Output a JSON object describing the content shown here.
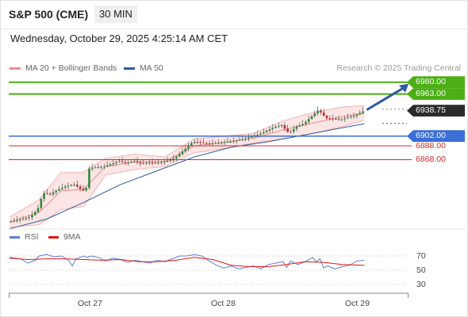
{
  "header": {
    "instrument": "S&P 500 (CME)",
    "timeframe": "30 MIN",
    "datetime": "Wednesday, October 29, 2025 4:25:14 AM CET"
  },
  "legend": {
    "ma20_label": "MA 20 + Bollinger Bands",
    "ma20_color": "#f08c8c",
    "ma50_label": "MA 50",
    "ma50_color": "#2c5aa0",
    "credit": "Research © 2025 Trading Central"
  },
  "rsi_legend": {
    "rsi_label": "RSI",
    "rsi_color": "#5b7fd6",
    "ma_label": "9MA",
    "ma_color": "#e01515"
  },
  "chart_data": {
    "type": "candlestick",
    "x_tick_labels": [
      "Oct 27",
      "Oct 28",
      "Oct 29"
    ],
    "price_range": [
      6770,
      6990
    ],
    "levels": [
      {
        "label": "6980.00",
        "value": 6980,
        "kind": "resistance",
        "color": "#4caf14"
      },
      {
        "label": "6963.00",
        "value": 6963,
        "kind": "resistance",
        "color": "#4caf14"
      },
      {
        "label": "6938.75",
        "value": 6938.75,
        "kind": "last_price",
        "color": "#2b2b2b"
      },
      {
        "label": "6902.00",
        "value": 6902,
        "kind": "pivot",
        "color": "#3a6fd8"
      },
      {
        "label": "6888.00",
        "value": 6888,
        "kind": "support",
        "color": "#d42a2a"
      },
      {
        "label": "6868.00",
        "value": 6868,
        "kind": "support",
        "color": "#d42a2a"
      }
    ],
    "target_arrow": {
      "from": 6940,
      "to": 6980,
      "color": "#2c5aa0"
    },
    "price_path": [
      [
        0,
        6778
      ],
      [
        0.02,
        6780
      ],
      [
        0.04,
        6782
      ],
      [
        0.06,
        6785
      ],
      [
        0.08,
        6796
      ],
      [
        0.09,
        6812
      ],
      [
        0.1,
        6822
      ],
      [
        0.11,
        6816
      ],
      [
        0.12,
        6820
      ],
      [
        0.14,
        6826
      ],
      [
        0.16,
        6830
      ],
      [
        0.18,
        6832
      ],
      [
        0.19,
        6828
      ],
      [
        0.2,
        6824
      ],
      [
        0.21,
        6822
      ],
      [
        0.22,
        6856
      ],
      [
        0.24,
        6857
      ],
      [
        0.26,
        6858
      ],
      [
        0.28,
        6862
      ],
      [
        0.3,
        6866
      ],
      [
        0.32,
        6863
      ],
      [
        0.34,
        6866
      ],
      [
        0.36,
        6862
      ],
      [
        0.38,
        6864
      ],
      [
        0.4,
        6863
      ],
      [
        0.42,
        6865
      ],
      [
        0.44,
        6867
      ],
      [
        0.46,
        6874
      ],
      [
        0.48,
        6884
      ],
      [
        0.5,
        6894
      ],
      [
        0.52,
        6893
      ],
      [
        0.54,
        6891
      ],
      [
        0.56,
        6892
      ],
      [
        0.58,
        6893
      ],
      [
        0.6,
        6894
      ],
      [
        0.62,
        6896
      ],
      [
        0.64,
        6898
      ],
      [
        0.66,
        6902
      ],
      [
        0.68,
        6905
      ],
      [
        0.7,
        6910
      ],
      [
        0.72,
        6915
      ],
      [
        0.74,
        6918
      ],
      [
        0.76,
        6906
      ],
      [
        0.78,
        6916
      ],
      [
        0.8,
        6920
      ],
      [
        0.82,
        6930
      ],
      [
        0.84,
        6940
      ],
      [
        0.86,
        6928
      ],
      [
        0.88,
        6927
      ],
      [
        0.9,
        6926
      ],
      [
        0.92,
        6929
      ],
      [
        0.94,
        6932
      ],
      [
        0.96,
        6938
      ]
    ],
    "ma50_path": [
      [
        0,
        6768
      ],
      [
        0.1,
        6782
      ],
      [
        0.2,
        6806
      ],
      [
        0.3,
        6832
      ],
      [
        0.4,
        6852
      ],
      [
        0.5,
        6872
      ],
      [
        0.6,
        6886
      ],
      [
        0.7,
        6894
      ],
      [
        0.8,
        6904
      ],
      [
        0.9,
        6914
      ],
      [
        0.96,
        6920
      ]
    ],
    "bollinger_upper": [
      [
        0,
        6785
      ],
      [
        0.08,
        6810
      ],
      [
        0.14,
        6850
      ],
      [
        0.2,
        6850
      ],
      [
        0.26,
        6870
      ],
      [
        0.34,
        6876
      ],
      [
        0.42,
        6872
      ],
      [
        0.5,
        6898
      ],
      [
        0.58,
        6902
      ],
      [
        0.66,
        6906
      ],
      [
        0.74,
        6924
      ],
      [
        0.82,
        6936
      ],
      [
        0.9,
        6944
      ],
      [
        0.96,
        6946
      ]
    ],
    "bollinger_lower": [
      [
        0,
        6770
      ],
      [
        0.08,
        6774
      ],
      [
        0.14,
        6796
      ],
      [
        0.2,
        6800
      ],
      [
        0.26,
        6846
      ],
      [
        0.34,
        6854
      ],
      [
        0.42,
        6858
      ],
      [
        0.5,
        6878
      ],
      [
        0.58,
        6884
      ],
      [
        0.66,
        6892
      ],
      [
        0.74,
        6898
      ],
      [
        0.82,
        6906
      ],
      [
        0.9,
        6916
      ],
      [
        0.96,
        6925
      ]
    ],
    "rsi": {
      "ticks": [
        "70",
        "50",
        "30"
      ],
      "range": [
        20,
        80
      ],
      "rsi_path": [
        [
          0,
          68
        ],
        [
          0.03,
          66
        ],
        [
          0.05,
          60
        ],
        [
          0.07,
          64
        ],
        [
          0.08,
          70
        ],
        [
          0.1,
          72
        ],
        [
          0.12,
          69
        ],
        [
          0.14,
          70
        ],
        [
          0.16,
          64
        ],
        [
          0.17,
          56
        ],
        [
          0.18,
          66
        ],
        [
          0.2,
          70
        ],
        [
          0.21,
          68
        ],
        [
          0.22,
          70
        ],
        [
          0.24,
          68
        ],
        [
          0.26,
          63
        ],
        [
          0.28,
          67
        ],
        [
          0.3,
          65
        ],
        [
          0.32,
          61
        ],
        [
          0.34,
          64
        ],
        [
          0.36,
          62
        ],
        [
          0.38,
          60
        ],
        [
          0.4,
          64
        ],
        [
          0.42,
          62
        ],
        [
          0.44,
          66
        ],
        [
          0.46,
          70
        ],
        [
          0.48,
          70
        ],
        [
          0.5,
          72
        ],
        [
          0.52,
          70
        ],
        [
          0.54,
          63
        ],
        [
          0.56,
          57
        ],
        [
          0.58,
          53
        ],
        [
          0.6,
          56
        ],
        [
          0.62,
          52
        ],
        [
          0.64,
          54
        ],
        [
          0.66,
          56
        ],
        [
          0.68,
          52
        ],
        [
          0.7,
          58
        ],
        [
          0.72,
          60
        ],
        [
          0.74,
          62
        ],
        [
          0.75,
          54
        ],
        [
          0.76,
          63
        ],
        [
          0.78,
          58
        ],
        [
          0.8,
          62
        ],
        [
          0.82,
          68
        ],
        [
          0.83,
          62
        ],
        [
          0.84,
          66
        ],
        [
          0.85,
          53
        ],
        [
          0.86,
          56
        ],
        [
          0.88,
          52
        ],
        [
          0.9,
          55
        ],
        [
          0.92,
          57
        ],
        [
          0.94,
          63
        ],
        [
          0.96,
          64
        ]
      ],
      "ma_path": [
        [
          0,
          67
        ],
        [
          0.05,
          65
        ],
        [
          0.1,
          66
        ],
        [
          0.15,
          66
        ],
        [
          0.2,
          65
        ],
        [
          0.25,
          64
        ],
        [
          0.3,
          65
        ],
        [
          0.35,
          62
        ],
        [
          0.4,
          62
        ],
        [
          0.45,
          64
        ],
        [
          0.5,
          68
        ],
        [
          0.55,
          65
        ],
        [
          0.6,
          57
        ],
        [
          0.65,
          55
        ],
        [
          0.7,
          55
        ],
        [
          0.75,
          58
        ],
        [
          0.8,
          62
        ],
        [
          0.85,
          61
        ],
        [
          0.9,
          58
        ],
        [
          0.96,
          57
        ]
      ]
    }
  }
}
